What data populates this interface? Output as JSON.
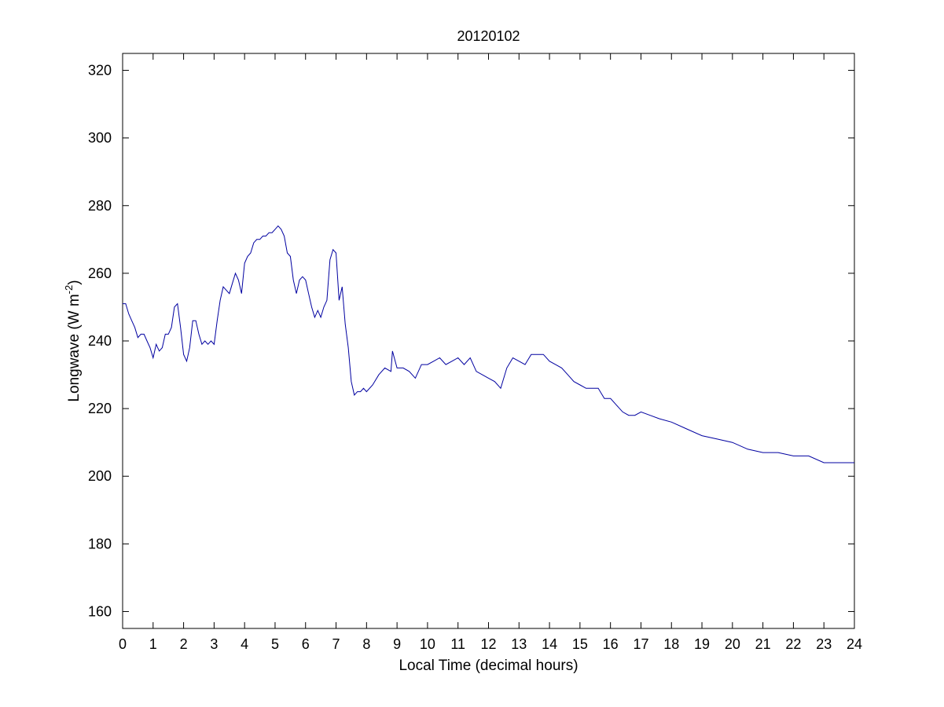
{
  "chart_data": {
    "type": "line",
    "title": "20120102",
    "xlabel": "Local Time (decimal hours)",
    "ylabel": {
      "prefix": "Longwave (W m",
      "sup": "-2",
      "suffix": ")"
    },
    "xlim": [
      0,
      24
    ],
    "ylim": [
      155,
      325
    ],
    "xticks": [
      0,
      1,
      2,
      3,
      4,
      5,
      6,
      7,
      8,
      9,
      10,
      11,
      12,
      13,
      14,
      15,
      16,
      17,
      18,
      19,
      20,
      21,
      22,
      23,
      24
    ],
    "yticks": [
      160,
      180,
      200,
      220,
      240,
      260,
      280,
      300,
      320
    ],
    "grid": false,
    "line_color": "#0000a0",
    "series": [
      {
        "x": [
          0,
          0.1,
          0.2,
          0.3,
          0.4,
          0.5,
          0.6,
          0.7,
          0.8,
          0.9,
          1.0,
          1.1,
          1.2,
          1.3,
          1.4,
          1.5,
          1.6,
          1.7,
          1.8,
          1.9,
          2.0,
          2.1,
          2.2,
          2.3,
          2.4,
          2.5,
          2.6,
          2.7,
          2.8,
          2.9,
          3.0,
          3.1,
          3.2,
          3.3,
          3.4,
          3.5,
          3.6,
          3.7,
          3.8,
          3.9,
          4.0,
          4.1,
          4.2,
          4.3,
          4.4,
          4.5,
          4.6,
          4.7,
          4.8,
          4.9,
          5.0,
          5.1,
          5.2,
          5.3,
          5.4,
          5.5,
          5.6,
          5.7,
          5.8,
          5.9,
          6.0,
          6.1,
          6.2,
          6.3,
          6.4,
          6.5,
          6.6,
          6.7,
          6.8,
          6.9,
          7.0,
          7.1,
          7.2,
          7.3,
          7.4,
          7.5,
          7.6,
          7.7,
          7.8,
          7.9,
          8.0,
          8.2,
          8.4,
          8.6,
          8.8,
          8.85,
          9.0,
          9.2,
          9.4,
          9.6,
          9.8,
          10.0,
          10.2,
          10.4,
          10.6,
          10.8,
          11.0,
          11.2,
          11.4,
          11.6,
          11.8,
          12.0,
          12.2,
          12.4,
          12.6,
          12.8,
          13.0,
          13.2,
          13.4,
          13.6,
          13.8,
          14.0,
          14.2,
          14.4,
          14.6,
          14.8,
          15.0,
          15.2,
          15.4,
          15.6,
          15.8,
          16.0,
          16.2,
          16.4,
          16.6,
          16.8,
          17.0,
          17.3,
          17.6,
          18.0,
          18.5,
          19.0,
          19.5,
          20.0,
          20.5,
          21.0,
          21.5,
          22.0,
          22.5,
          23.0,
          23.5,
          24.0
        ],
        "y": [
          251,
          251,
          248,
          246,
          244,
          241,
          242,
          242,
          240,
          238,
          235,
          239,
          237,
          238,
          242,
          242,
          244,
          250,
          251,
          244,
          236,
          234,
          238,
          246,
          246,
          242,
          239,
          240,
          239,
          240,
          239,
          246,
          252,
          256,
          255,
          254,
          257,
          260,
          258,
          254,
          263,
          265,
          266,
          269,
          270,
          270,
          271,
          271,
          272,
          272,
          273,
          274,
          273,
          271,
          266,
          265,
          258,
          254,
          258,
          259,
          258,
          254,
          250,
          247,
          249,
          247,
          250,
          252,
          264,
          267,
          266,
          252,
          256,
          245,
          238,
          228,
          224,
          225,
          225,
          226,
          225,
          227,
          230,
          232,
          231,
          237,
          232,
          232,
          231,
          229,
          233,
          233,
          234,
          235,
          233,
          234,
          235,
          233,
          235,
          231,
          230,
          229,
          228,
          226,
          232,
          235,
          234,
          233,
          236,
          236,
          236,
          234,
          233,
          232,
          230,
          228,
          227,
          226,
          226,
          226,
          223,
          223,
          221,
          219,
          218,
          218,
          219,
          218,
          217,
          216,
          214,
          212,
          211,
          210,
          208,
          207,
          207,
          206,
          206,
          204,
          204,
          204
        ]
      }
    ]
  }
}
